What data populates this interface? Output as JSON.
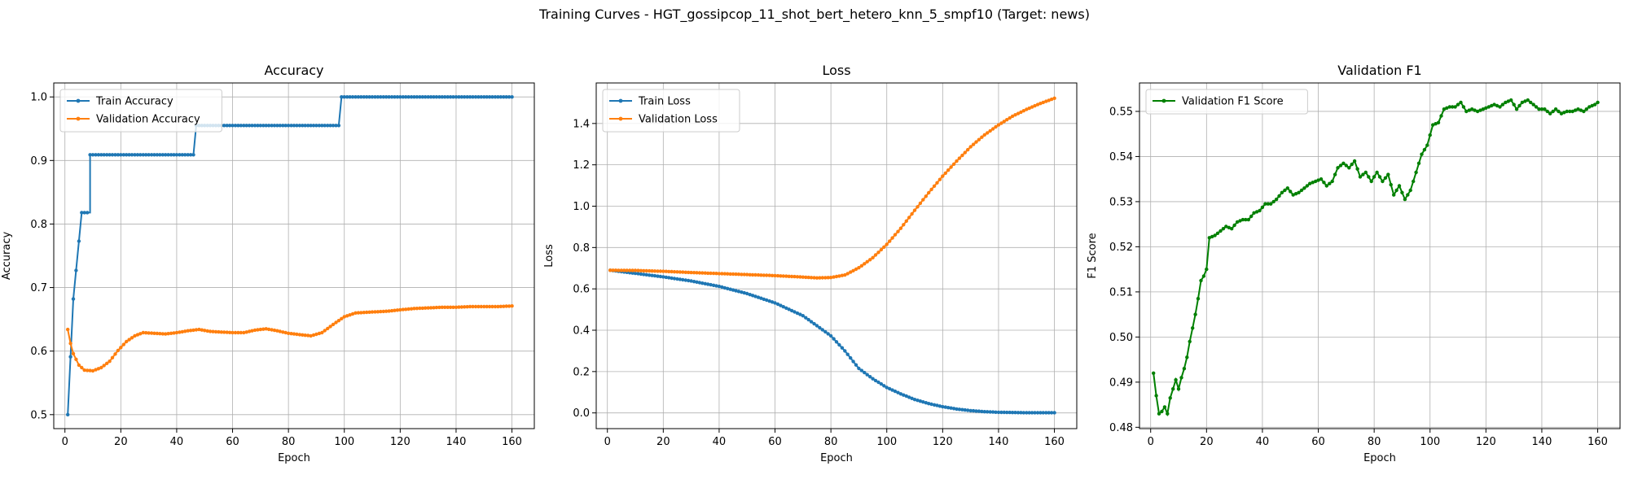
{
  "suptitle": "Training Curves - HGT_gossipcop_11_shot_bert_hetero_knn_5_smpf10 (Target: news)",
  "chart_data": [
    {
      "type": "line",
      "title": "Accuracy",
      "xlabel": "Epoch",
      "ylabel": "Accuracy",
      "xlim": [
        -4,
        168
      ],
      "ylim": [
        0.478,
        1.022
      ],
      "xticks": [
        0,
        20,
        40,
        60,
        80,
        100,
        120,
        140,
        160
      ],
      "yticks": [
        0.5,
        0.6,
        0.7,
        0.8,
        0.9,
        1.0
      ],
      "yticklabels": [
        "0.5",
        "0.6",
        "0.7",
        "0.8",
        "0.9",
        "1.0"
      ],
      "grid": true,
      "legend": "upper left",
      "series": [
        {
          "name": "Train Accuracy",
          "color": "#1f77b4",
          "points": [
            [
              1,
              0.5
            ],
            [
              2,
              0.591
            ],
            [
              3,
              0.682
            ],
            [
              4,
              0.727
            ],
            [
              5,
              0.773
            ],
            [
              6,
              0.818
            ],
            [
              9,
              0.818
            ],
            [
              9,
              0.909
            ],
            [
              46,
              0.909
            ],
            [
              47,
              0.955
            ],
            [
              98,
              0.955
            ],
            [
              99,
              1.0
            ],
            [
              160,
              1.0
            ]
          ]
        },
        {
          "name": "Validation Accuracy",
          "color": "#ff7f0e",
          "points": [
            [
              1,
              0.634
            ],
            [
              2,
              0.612
            ],
            [
              3,
              0.596
            ],
            [
              5,
              0.578
            ],
            [
              7,
              0.57
            ],
            [
              10,
              0.569
            ],
            [
              13,
              0.574
            ],
            [
              16,
              0.584
            ],
            [
              19,
              0.601
            ],
            [
              22,
              0.615
            ],
            [
              25,
              0.624
            ],
            [
              28,
              0.629
            ],
            [
              32,
              0.628
            ],
            [
              36,
              0.627
            ],
            [
              40,
              0.629
            ],
            [
              44,
              0.632
            ],
            [
              48,
              0.634
            ],
            [
              52,
              0.631
            ],
            [
              56,
              0.63
            ],
            [
              60,
              0.629
            ],
            [
              64,
              0.629
            ],
            [
              68,
              0.633
            ],
            [
              72,
              0.635
            ],
            [
              76,
              0.632
            ],
            [
              80,
              0.628
            ],
            [
              84,
              0.626
            ],
            [
              88,
              0.624
            ],
            [
              92,
              0.629
            ],
            [
              96,
              0.642
            ],
            [
              100,
              0.654
            ],
            [
              104,
              0.66
            ],
            [
              108,
              0.661
            ],
            [
              112,
              0.662
            ],
            [
              116,
              0.663
            ],
            [
              120,
              0.665
            ],
            [
              125,
              0.667
            ],
            [
              130,
              0.668
            ],
            [
              135,
              0.669
            ],
            [
              140,
              0.669
            ],
            [
              145,
              0.67
            ],
            [
              150,
              0.67
            ],
            [
              155,
              0.67
            ],
            [
              160,
              0.671
            ]
          ]
        }
      ]
    },
    {
      "type": "line",
      "title": "Loss",
      "xlabel": "Epoch",
      "ylabel": "Loss",
      "xlim": [
        -4,
        168
      ],
      "ylim": [
        -0.076,
        1.596
      ],
      "xticks": [
        0,
        20,
        40,
        60,
        80,
        100,
        120,
        140,
        160
      ],
      "yticks": [
        0.0,
        0.2,
        0.4,
        0.6,
        0.8,
        1.0,
        1.2,
        1.4
      ],
      "yticklabels": [
        "0.0",
        "0.2",
        "0.4",
        "0.6",
        "0.8",
        "1.0",
        "1.2",
        "1.4"
      ],
      "grid": true,
      "legend": "upper left",
      "series": [
        {
          "name": "Train Loss",
          "color": "#1f77b4",
          "points": [
            [
              1,
              0.69
            ],
            [
              10,
              0.675
            ],
            [
              20,
              0.658
            ],
            [
              30,
              0.638
            ],
            [
              40,
              0.612
            ],
            [
              50,
              0.577
            ],
            [
              60,
              0.532
            ],
            [
              70,
              0.47
            ],
            [
              80,
              0.373
            ],
            [
              85,
              0.3
            ],
            [
              90,
              0.215
            ],
            [
              95,
              0.165
            ],
            [
              100,
              0.123
            ],
            [
              105,
              0.092
            ],
            [
              110,
              0.065
            ],
            [
              115,
              0.045
            ],
            [
              120,
              0.03
            ],
            [
              125,
              0.019
            ],
            [
              130,
              0.011
            ],
            [
              135,
              0.006
            ],
            [
              140,
              0.003
            ],
            [
              150,
              0.001
            ],
            [
              160,
              0.001
            ]
          ]
        },
        {
          "name": "Validation Loss",
          "color": "#ff7f0e",
          "points": [
            [
              1,
              0.69
            ],
            [
              10,
              0.689
            ],
            [
              20,
              0.685
            ],
            [
              30,
              0.679
            ],
            [
              40,
              0.674
            ],
            [
              50,
              0.669
            ],
            [
              60,
              0.664
            ],
            [
              70,
              0.657
            ],
            [
              75,
              0.653
            ],
            [
              80,
              0.655
            ],
            [
              85,
              0.667
            ],
            [
              90,
              0.702
            ],
            [
              95,
              0.751
            ],
            [
              100,
              0.815
            ],
            [
              105,
              0.893
            ],
            [
              110,
              0.98
            ],
            [
              115,
              1.065
            ],
            [
              120,
              1.145
            ],
            [
              125,
              1.218
            ],
            [
              130,
              1.287
            ],
            [
              135,
              1.345
            ],
            [
              140,
              1.393
            ],
            [
              145,
              1.435
            ],
            [
              150,
              1.468
            ],
            [
              155,
              1.497
            ],
            [
              160,
              1.522
            ]
          ]
        }
      ]
    },
    {
      "type": "line",
      "title": "Validation F1",
      "xlabel": "Epoch",
      "ylabel": "F1 Score",
      "xlim": [
        -4,
        168
      ],
      "ylim": [
        0.4797,
        0.5563
      ],
      "xticks": [
        0,
        20,
        40,
        60,
        80,
        100,
        120,
        140,
        160
      ],
      "yticks": [
        0.48,
        0.49,
        0.5,
        0.51,
        0.52,
        0.53,
        0.54,
        0.55
      ],
      "yticklabels": [
        "0.48",
        "0.49",
        "0.50",
        "0.51",
        "0.52",
        "0.53",
        "0.54",
        "0.55"
      ],
      "grid": true,
      "legend": "upper left",
      "series": [
        {
          "name": "Validation F1 Score",
          "color": "#008000",
          "points": [
            [
              1,
              0.492
            ],
            [
              2,
              0.487
            ],
            [
              3,
              0.483
            ],
            [
              4,
              0.4835
            ],
            [
              5,
              0.4845
            ],
            [
              6,
              0.483
            ],
            [
              7,
              0.4865
            ],
            [
              8,
              0.4885
            ],
            [
              9,
              0.4905
            ],
            [
              10,
              0.4885
            ],
            [
              11,
              0.491
            ],
            [
              12,
              0.493
            ],
            [
              13,
              0.4955
            ],
            [
              14,
              0.499
            ],
            [
              15,
              0.502
            ],
            [
              16,
              0.505
            ],
            [
              17,
              0.5085
            ],
            [
              18,
              0.5125
            ],
            [
              19,
              0.5135
            ],
            [
              20,
              0.515
            ],
            [
              21,
              0.522
            ],
            [
              23,
              0.5225
            ],
            [
              25,
              0.5235
            ],
            [
              27,
              0.5245
            ],
            [
              29,
              0.524
            ],
            [
              31,
              0.5255
            ],
            [
              33,
              0.526
            ],
            [
              35,
              0.526
            ],
            [
              37,
              0.5275
            ],
            [
              39,
              0.528
            ],
            [
              41,
              0.5295
            ],
            [
              43,
              0.5295
            ],
            [
              45,
              0.5305
            ],
            [
              47,
              0.532
            ],
            [
              49,
              0.533
            ],
            [
              51,
              0.5315
            ],
            [
              53,
              0.532
            ],
            [
              55,
              0.533
            ],
            [
              57,
              0.534
            ],
            [
              59,
              0.5345
            ],
            [
              61,
              0.535
            ],
            [
              63,
              0.5335
            ],
            [
              65,
              0.5345
            ],
            [
              67,
              0.5375
            ],
            [
              69,
              0.5385
            ],
            [
              71,
              0.5375
            ],
            [
              73,
              0.539
            ],
            [
              75,
              0.5355
            ],
            [
              77,
              0.5365
            ],
            [
              79,
              0.5345
            ],
            [
              81,
              0.5365
            ],
            [
              83,
              0.5345
            ],
            [
              85,
              0.536
            ],
            [
              87,
              0.5315
            ],
            [
              89,
              0.5335
            ],
            [
              91,
              0.5305
            ],
            [
              93,
              0.5325
            ],
            [
              95,
              0.5365
            ],
            [
              97,
              0.5405
            ],
            [
              99,
              0.5425
            ],
            [
              101,
              0.547
            ],
            [
              103,
              0.5475
            ],
            [
              105,
              0.5505
            ],
            [
              107,
              0.551
            ],
            [
              109,
              0.551
            ],
            [
              111,
              0.552
            ],
            [
              113,
              0.55
            ],
            [
              115,
              0.5505
            ],
            [
              117,
              0.55
            ],
            [
              119,
              0.5505
            ],
            [
              121,
              0.551
            ],
            [
              123,
              0.5515
            ],
            [
              125,
              0.551
            ],
            [
              127,
              0.552
            ],
            [
              129,
              0.5525
            ],
            [
              131,
              0.5505
            ],
            [
              133,
              0.552
            ],
            [
              135,
              0.5525
            ],
            [
              137,
              0.5515
            ],
            [
              139,
              0.5505
            ],
            [
              141,
              0.5505
            ],
            [
              143,
              0.5495
            ],
            [
              145,
              0.5505
            ],
            [
              147,
              0.5495
            ],
            [
              149,
              0.55
            ],
            [
              151,
              0.55
            ],
            [
              153,
              0.5505
            ],
            [
              155,
              0.55
            ],
            [
              157,
              0.551
            ],
            [
              159,
              0.5515
            ],
            [
              160,
              0.552
            ]
          ]
        }
      ]
    }
  ]
}
